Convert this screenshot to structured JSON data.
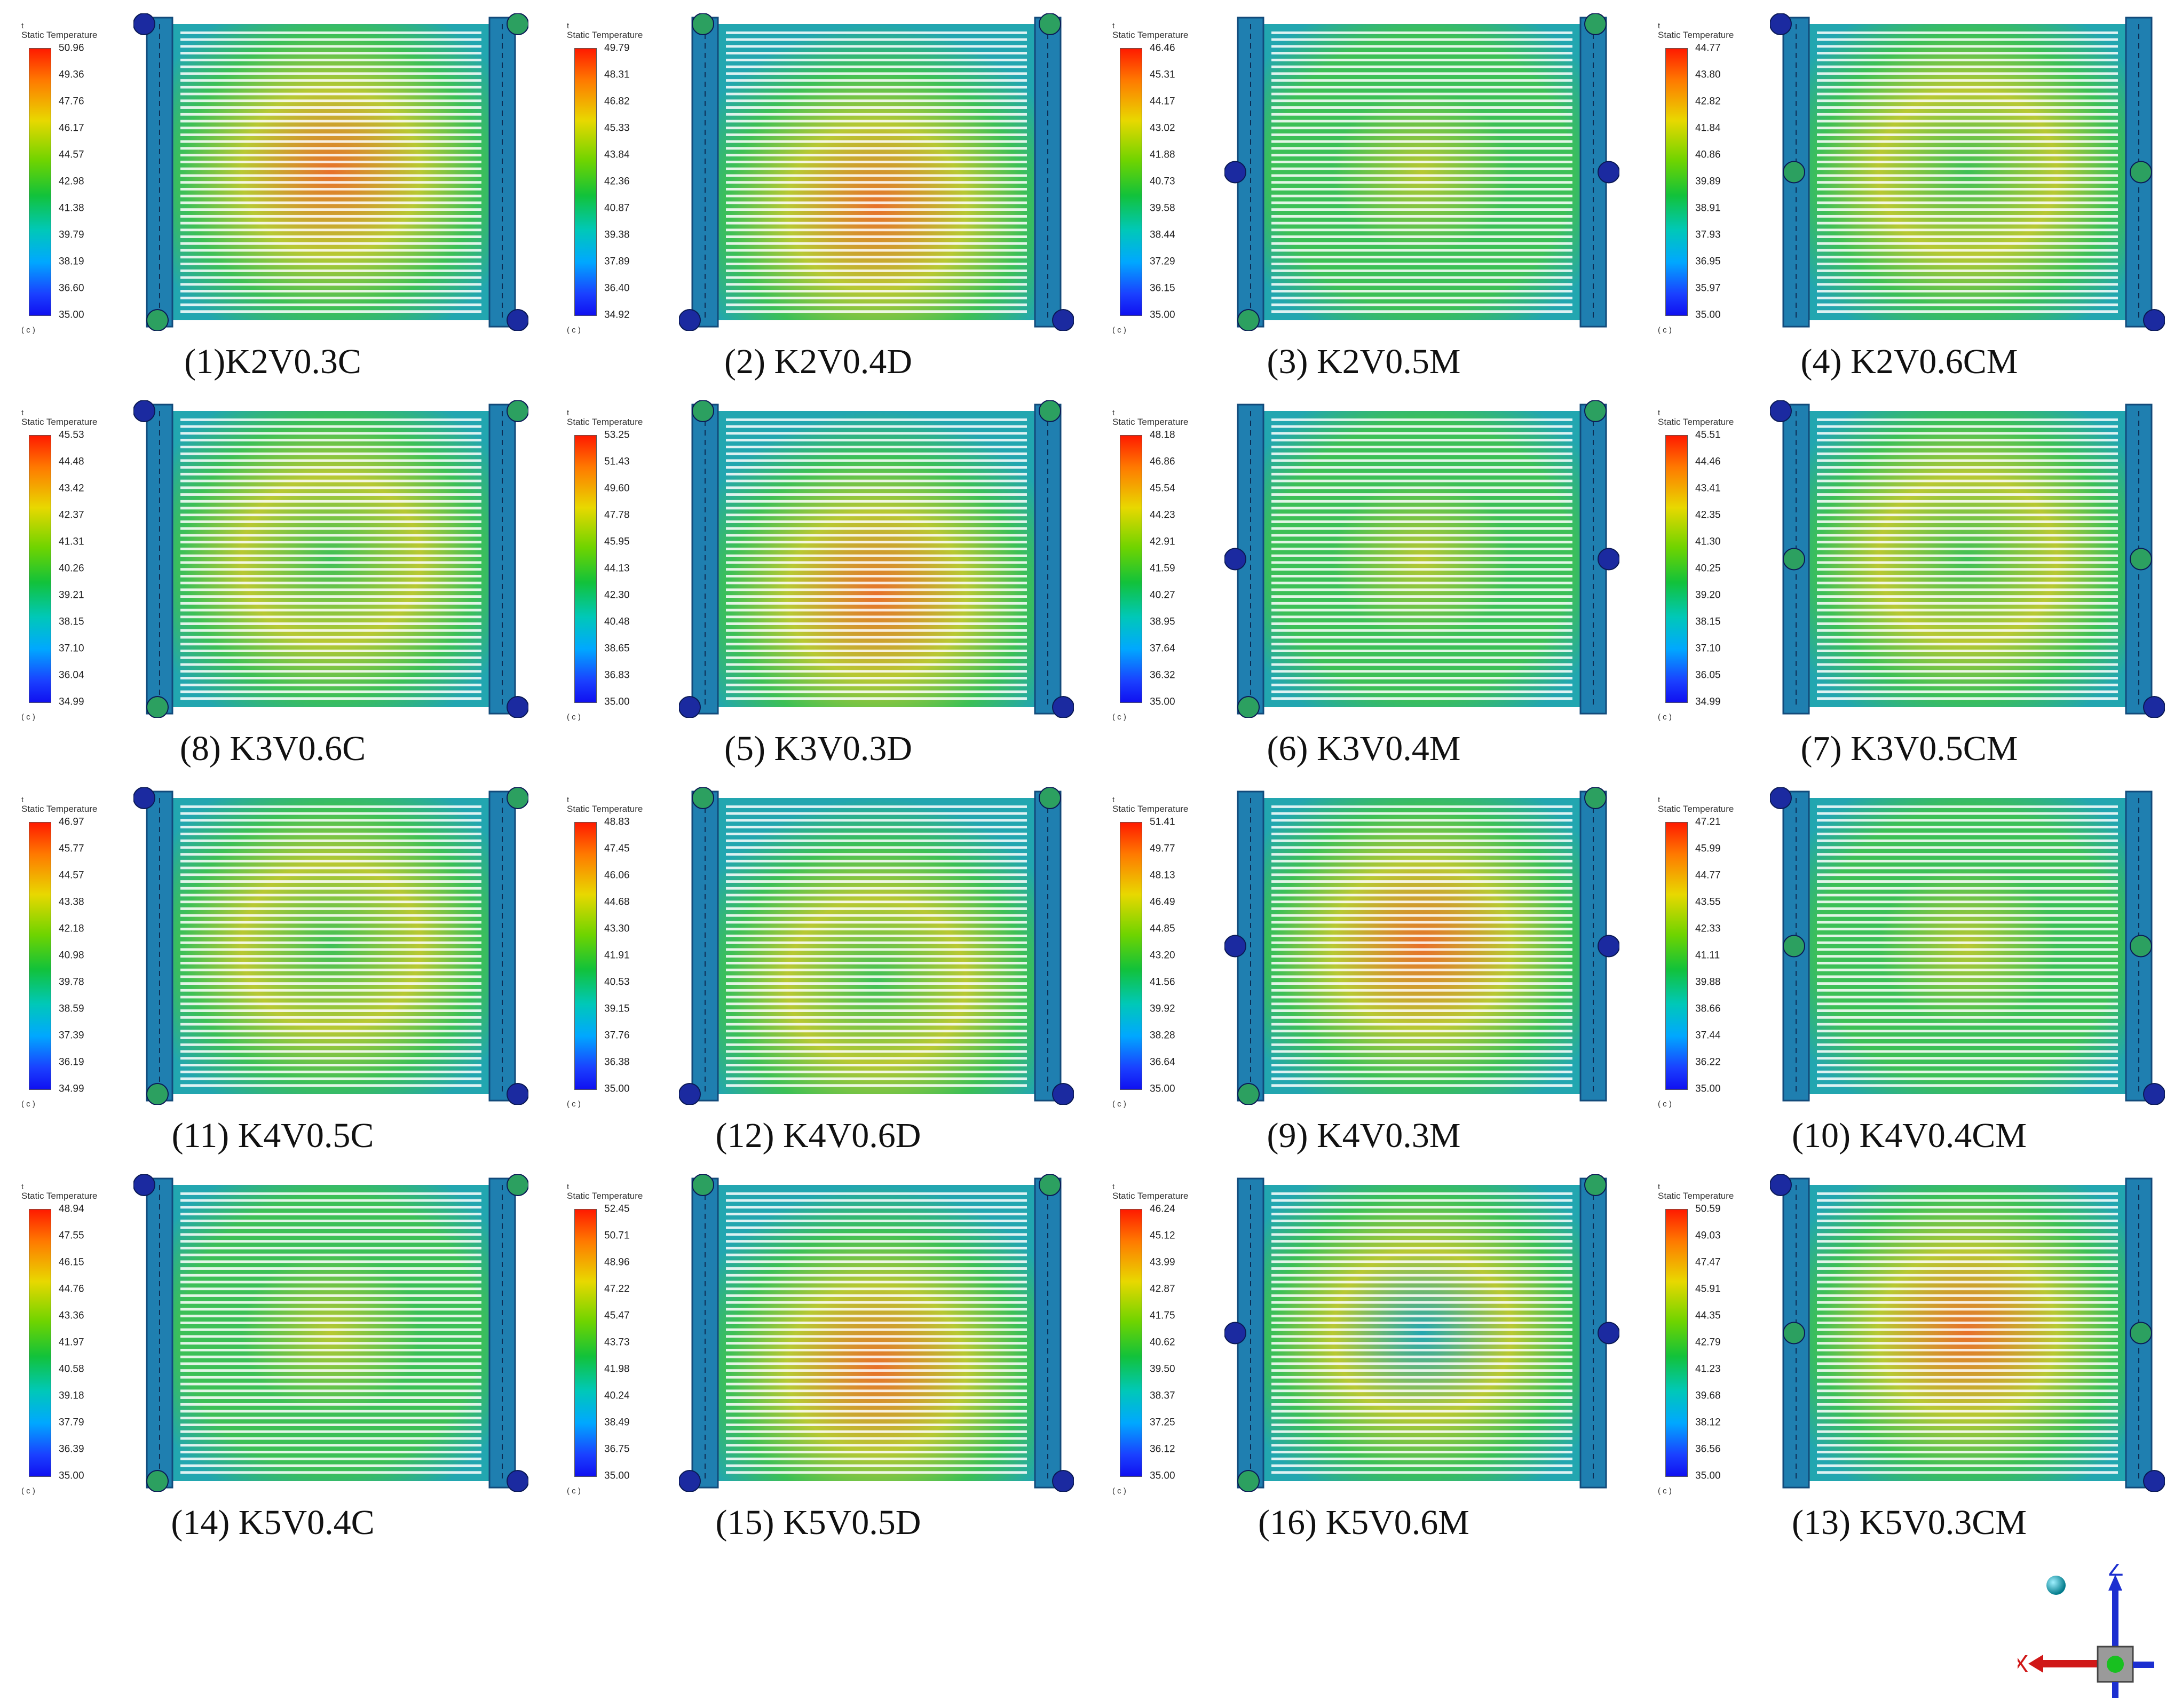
{
  "legend_title": "Static Temperature",
  "legend_var": "t",
  "legend_unit": "( c )",
  "colors": {
    "hot": "#e8702a",
    "warm": "#b8c832",
    "mid": "#3cc056",
    "cool": "#22a6b0",
    "cold": "#1656b4",
    "header": "#1f7fb0",
    "port": "#1b2aa0",
    "port_green": "#2ca060"
  },
  "panels": [
    {
      "label": "(1)K2V0.3C",
      "ticks": [
        "50.96",
        "49.36",
        "47.76",
        "46.17",
        "44.57",
        "42.98",
        "41.38",
        "39.79",
        "38.19",
        "36.60",
        "35.00"
      ],
      "core": "hot",
      "layout": "C"
    },
    {
      "label": "(2) K2V0.4D",
      "ticks": [
        "49.79",
        "48.31",
        "46.82",
        "45.33",
        "43.84",
        "42.36",
        "40.87",
        "39.38",
        "37.89",
        "36.40",
        "34.92"
      ],
      "core": "hot",
      "layout": "D"
    },
    {
      "label": "(3) K2V0.5M",
      "ticks": [
        "46.46",
        "45.31",
        "44.17",
        "43.02",
        "41.88",
        "40.73",
        "39.58",
        "38.44",
        "37.29",
        "36.15",
        "35.00"
      ],
      "core": "warm",
      "layout": "M"
    },
    {
      "label": "(4) K2V0.6CM",
      "ticks": [
        "44.77",
        "43.80",
        "42.82",
        "41.84",
        "40.86",
        "39.89",
        "38.91",
        "37.93",
        "36.95",
        "35.97",
        "35.00"
      ],
      "core": "mid",
      "layout": "CM"
    },
    {
      "label": "(8) K3V0.6C",
      "ticks": [
        "45.53",
        "44.48",
        "43.42",
        "42.37",
        "41.31",
        "40.26",
        "39.21",
        "38.15",
        "37.10",
        "36.04",
        "34.99"
      ],
      "core": "mid",
      "layout": "C"
    },
    {
      "label": "(5) K3V0.3D",
      "ticks": [
        "53.25",
        "51.43",
        "49.60",
        "47.78",
        "45.95",
        "44.13",
        "42.30",
        "40.48",
        "38.65",
        "36.83",
        "35.00"
      ],
      "core": "hot",
      "layout": "D"
    },
    {
      "label": "(6) K3V0.4M",
      "ticks": [
        "48.18",
        "46.86",
        "45.54",
        "44.23",
        "42.91",
        "41.59",
        "40.27",
        "38.95",
        "37.64",
        "36.32",
        "35.00"
      ],
      "core": "warm",
      "layout": "M"
    },
    {
      "label": "(7) K3V0.5CM",
      "ticks": [
        "45.51",
        "44.46",
        "43.41",
        "42.35",
        "41.30",
        "40.25",
        "39.20",
        "38.15",
        "37.10",
        "36.05",
        "34.99"
      ],
      "core": "mid",
      "layout": "CM"
    },
    {
      "label": "(11) K4V0.5C",
      "ticks": [
        "46.97",
        "45.77",
        "44.57",
        "43.38",
        "42.18",
        "40.98",
        "39.78",
        "38.59",
        "37.39",
        "36.19",
        "34.99"
      ],
      "core": "mid",
      "layout": "C"
    },
    {
      "label": "(12) K4V0.6D",
      "ticks": [
        "48.83",
        "47.45",
        "46.06",
        "44.68",
        "43.30",
        "41.91",
        "40.53",
        "39.15",
        "37.76",
        "36.38",
        "35.00"
      ],
      "core": "mid",
      "layout": "D"
    },
    {
      "label": "(9) K4V0.3M",
      "ticks": [
        "51.41",
        "49.77",
        "48.13",
        "46.49",
        "44.85",
        "43.20",
        "41.56",
        "39.92",
        "38.28",
        "36.64",
        "35.00"
      ],
      "core": "hot",
      "layout": "M"
    },
    {
      "label": "(10) K4V0.4CM",
      "ticks": [
        "47.21",
        "45.99",
        "44.77",
        "43.55",
        "42.33",
        "41.11",
        "39.88",
        "38.66",
        "37.44",
        "36.22",
        "35.00"
      ],
      "core": "warm",
      "layout": "CM"
    },
    {
      "label": "(14) K5V0.4C",
      "ticks": [
        "48.94",
        "47.55",
        "46.15",
        "44.76",
        "43.36",
        "41.97",
        "40.58",
        "39.18",
        "37.79",
        "36.39",
        "35.00"
      ],
      "core": "warm",
      "layout": "C"
    },
    {
      "label": "(15) K5V0.5D",
      "ticks": [
        "52.45",
        "50.71",
        "48.96",
        "47.22",
        "45.47",
        "43.73",
        "41.98",
        "40.24",
        "38.49",
        "36.75",
        "35.00"
      ],
      "core": "hot",
      "layout": "D"
    },
    {
      "label": "(16) K5V0.6M",
      "ticks": [
        "46.24",
        "45.12",
        "43.99",
        "42.87",
        "41.75",
        "40.62",
        "39.50",
        "38.37",
        "37.25",
        "36.12",
        "35.00"
      ],
      "core": "cool",
      "layout": "M"
    },
    {
      "label": "(13) K5V0.3CM",
      "ticks": [
        "50.59",
        "49.03",
        "47.47",
        "45.91",
        "44.35",
        "42.79",
        "41.23",
        "39.68",
        "38.12",
        "36.56",
        "35.00"
      ],
      "core": "hot",
      "layout": "CM"
    }
  ],
  "triad": {
    "z": "Z",
    "x": "X"
  }
}
